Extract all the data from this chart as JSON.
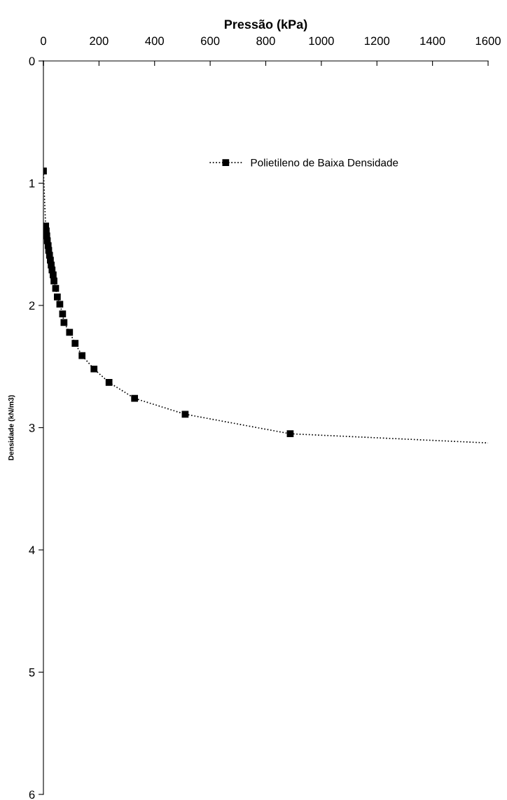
{
  "chart_data": {
    "type": "line",
    "xlabel": "Pressão (kPa)",
    "ylabel": "Densidade (kN/m3)",
    "xlim": [
      0,
      1600
    ],
    "xticks": [
      0,
      200,
      400,
      600,
      800,
      1000,
      1200,
      1400,
      1600
    ],
    "ylim": [
      6,
      0
    ],
    "yticks": [
      0,
      1,
      2,
      3,
      4,
      5,
      6
    ],
    "grid": false,
    "legend": "top right",
    "marker": "square",
    "line_style": "dotted",
    "series": [
      {
        "name": "Polietileno de Baixa Densidade",
        "color": "#000000",
        "x": [
          0,
          8,
          10,
          12,
          14,
          17,
          19,
          22,
          25,
          28,
          31,
          35,
          38,
          44,
          50,
          59,
          69,
          74,
          94,
          114,
          139,
          182,
          236,
          328,
          510,
          888
        ],
        "values": [
          0.9,
          1.35,
          1.39,
          1.43,
          1.47,
          1.51,
          1.55,
          1.59,
          1.63,
          1.67,
          1.71,
          1.75,
          1.8,
          1.86,
          1.93,
          1.99,
          2.07,
          2.14,
          2.22,
          2.31,
          2.41,
          2.52,
          2.63,
          2.76,
          2.89,
          3.05
        ]
      },
      {
        "color": "#000000",
        "marker": "none",
        "x": [
          888,
          1600
        ],
        "values": [
          3.05,
          3.125
        ]
      }
    ]
  }
}
